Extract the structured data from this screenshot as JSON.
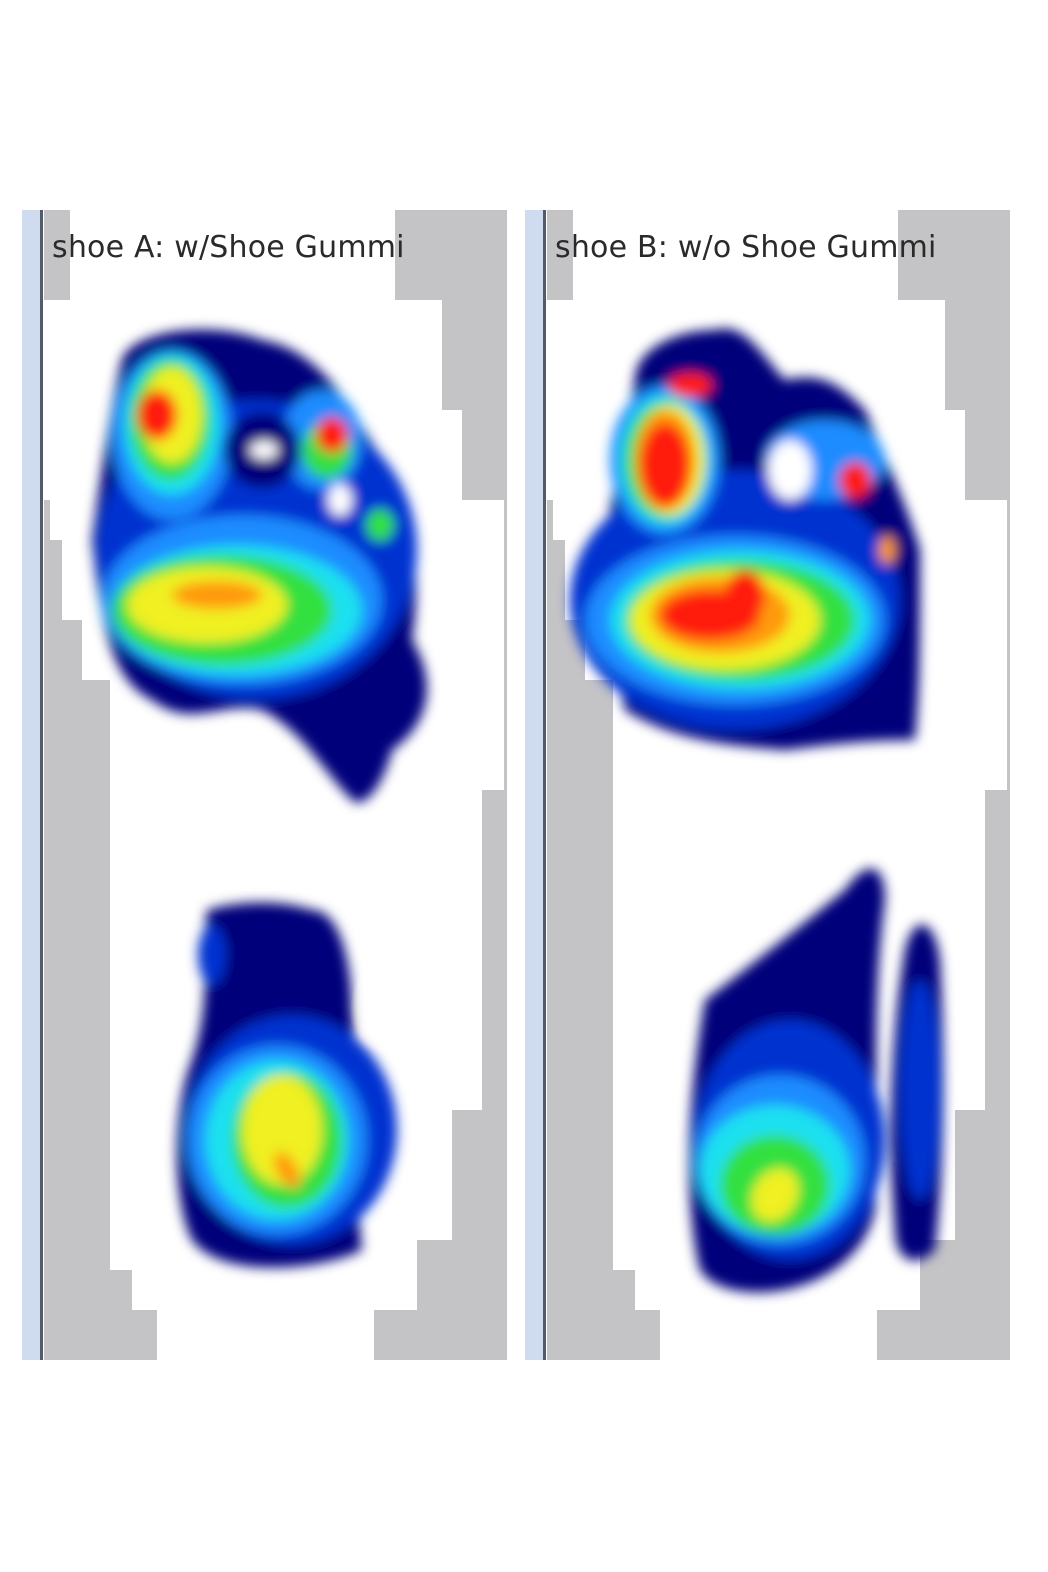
{
  "panels": [
    {
      "label": "shoe A: w/Shoe Gummi"
    },
    {
      "label": "shoe B: w/o Shoe Gummi"
    }
  ],
  "colors": {
    "frame_blue": "#cfdcef",
    "frame_line": "#555b66",
    "insole_gray": "#c4c4c6",
    "pressure_scale": [
      "#00007a",
      "#0030d0",
      "#1a8cff",
      "#1ee0f0",
      "#30e040",
      "#f0f020",
      "#ff9a10",
      "#ff1a0a"
    ]
  }
}
